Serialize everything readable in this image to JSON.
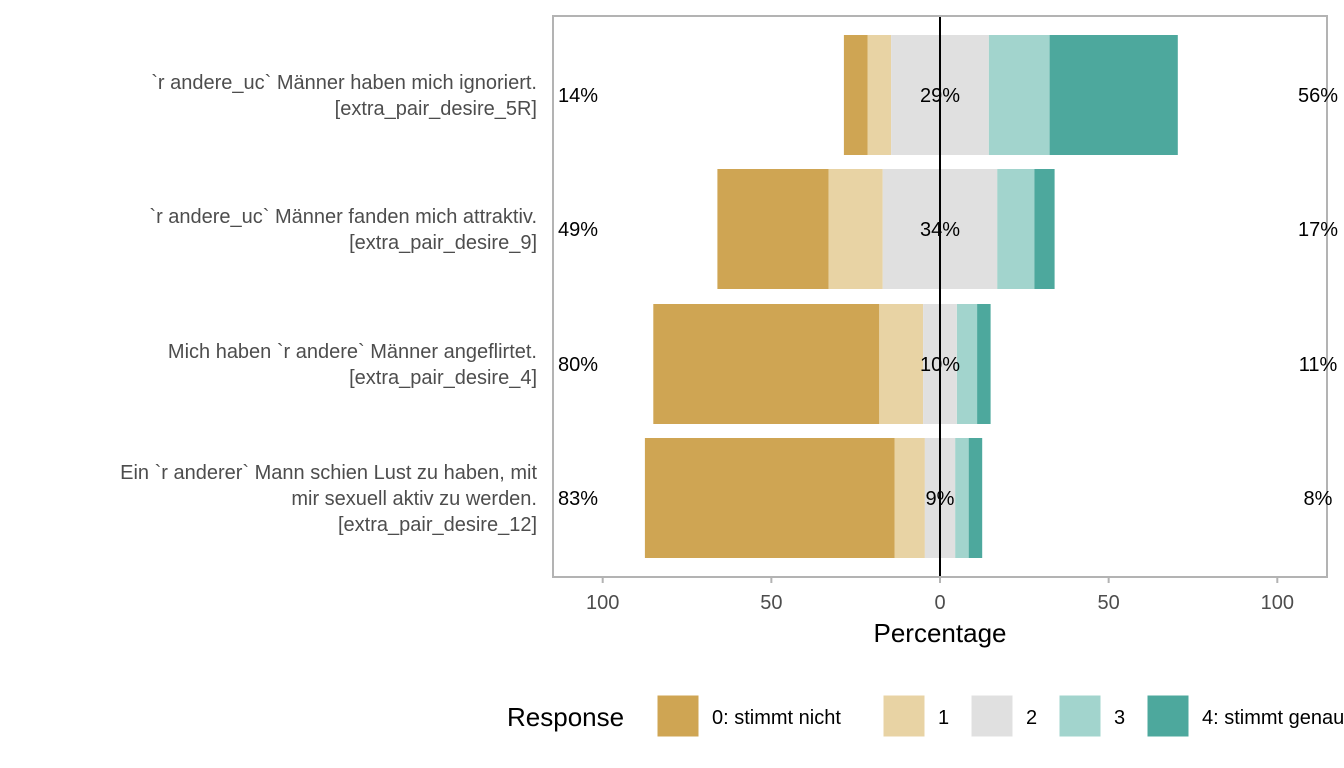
{
  "chart_data": {
    "type": "bar",
    "orientation": "horizontal-diverging",
    "xlabel": "Percentage",
    "xlim": [
      -100,
      100
    ],
    "x_ticks": [
      -100,
      -50,
      0,
      50,
      100
    ],
    "x_tick_labels": [
      "100",
      "50",
      "0",
      "50",
      "100"
    ],
    "categories": [
      [
        "`r andere_uc` Männer haben mich ignoriert.",
        "[extra_pair_desire_5R]"
      ],
      [
        "`r andere_uc` Männer fanden mich attraktiv.",
        "[extra_pair_desire_9]"
      ],
      [
        "Mich haben `r andere` Männer angeflirtet.",
        "[extra_pair_desire_4]"
      ],
      [
        "Ein `r anderer` Mann schien Lust zu haben, mit",
        "mir sexuell aktiv zu werden.",
        "[extra_pair_desire_12]"
      ]
    ],
    "series": [
      {
        "name": "0: stimmt nicht",
        "color": "#CFA553",
        "values": [
          7,
          33,
          67,
          74
        ]
      },
      {
        "name": "1",
        "color": "#E8D3A4",
        "values": [
          7,
          16,
          13,
          9
        ]
      },
      {
        "name": "2",
        "color": "#E0E0E0",
        "values": [
          29,
          34,
          10,
          9
        ]
      },
      {
        "name": "3",
        "color": "#A2D4CD",
        "values": [
          18,
          11,
          6,
          4
        ]
      },
      {
        "name": "4: stimmt genau",
        "color": "#4DA89D",
        "values": [
          38,
          6,
          4,
          4
        ]
      }
    ],
    "left_labels": [
      "14%",
      "49%",
      "80%",
      "83%"
    ],
    "center_labels": [
      "29%",
      "34%",
      "10%",
      "9%"
    ],
    "right_labels": [
      "56%",
      "17%",
      "11%",
      "8%"
    ],
    "legend": {
      "title": "Response",
      "position": "bottom"
    }
  }
}
